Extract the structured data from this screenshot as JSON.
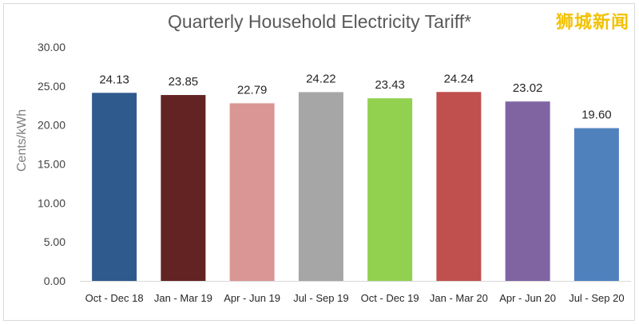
{
  "watermark": "狮城新闻",
  "chart_data": {
    "type": "bar",
    "title": "Quarterly Household Electricity Tariff*",
    "xlabel": "",
    "ylabel": "Cents/kWh",
    "ylim": [
      0,
      30
    ],
    "yticks": [
      "0.00",
      "5.00",
      "10.00",
      "15.00",
      "20.00",
      "25.00",
      "30.00"
    ],
    "grid": false,
    "categories": [
      "Oct - Dec 18",
      "Jan - Mar 19",
      "Apr - Jun 19",
      "Jul - Sep 19",
      "Oct - Dec 19",
      "Jan - Mar 20",
      "Apr - Jun 20",
      "Jul - Sep 20"
    ],
    "values": [
      24.13,
      23.85,
      22.79,
      24.22,
      23.43,
      24.24,
      23.02,
      19.6
    ],
    "value_labels": [
      "24.13",
      "23.85",
      "22.79",
      "24.22",
      "23.43",
      "24.24",
      "23.02",
      "19.60"
    ],
    "colors": [
      "#2f5a8e",
      "#632323",
      "#d99694",
      "#a6a6a6",
      "#92d050",
      "#c0504d",
      "#8064a2",
      "#4f81bd"
    ]
  }
}
